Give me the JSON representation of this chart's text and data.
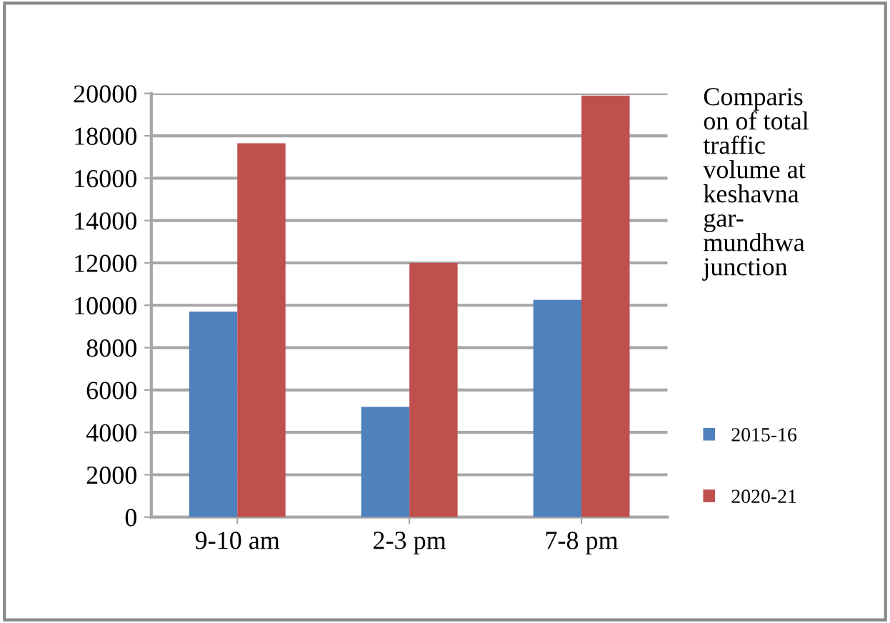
{
  "chart_data": {
    "type": "bar",
    "title": "Comparis\non of total\ntraffic\nvolume at\nkeshavna\ngar-\nmundhwa\njunction",
    "categories": [
      "9-10 am",
      "2-3 pm",
      "7-8 pm"
    ],
    "series": [
      {
        "name": "2015-16",
        "color": "#4f81bd",
        "values": [
          9700,
          5200,
          10250
        ]
      },
      {
        "name": "2020-21",
        "color": "#c0504d",
        "values": [
          17650,
          12000,
          19900
        ]
      }
    ],
    "ylim": [
      0,
      20000
    ],
    "yticks": [
      0,
      2000,
      4000,
      6000,
      8000,
      10000,
      12000,
      14000,
      16000,
      18000,
      20000
    ],
    "grid": "y",
    "legend": "right"
  }
}
